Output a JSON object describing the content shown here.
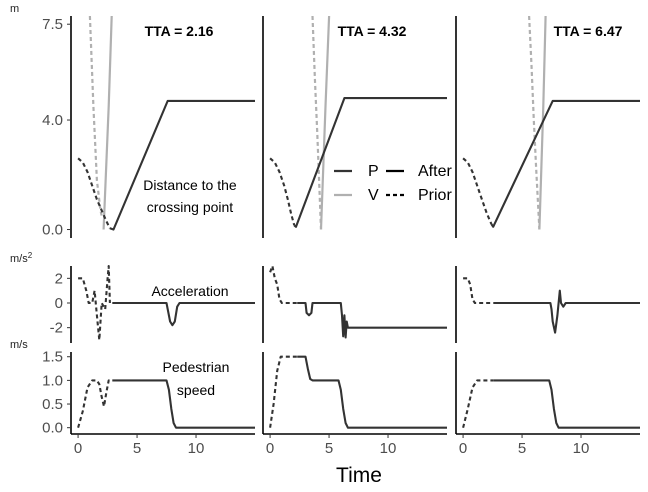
{
  "chart_data": {
    "type": "line",
    "xlabel": "Time",
    "x_ticks": [
      0,
      5,
      10
    ],
    "x_range": [
      -0.6,
      15
    ],
    "legend": {
      "placement": "center",
      "rows": [
        {
          "agent": "P",
          "after": "After",
          "color": "#333333"
        },
        {
          "agent": "V",
          "after": "Prior",
          "color": "#b0b0b0"
        }
      ],
      "style_after": "solid",
      "style_prior": "dashed"
    },
    "panels": {
      "distance": {
        "unit": "m",
        "ylim": [
          -0.2,
          7.8
        ],
        "y_ticks": [
          {
            "value": 0,
            "label": "0.0"
          },
          {
            "value": 4,
            "label": "4.0"
          },
          {
            "value": 7.5,
            "label": "7.5"
          }
        ],
        "annotation": [
          "Distance to the",
          "crossing point"
        ]
      },
      "acceleration": {
        "unit": "m/s",
        "unit_sup": "2",
        "ylim": [
          -3,
          3
        ],
        "y_ticks": [
          {
            "value": 2,
            "label": "2"
          },
          {
            "value": 0,
            "label": "0"
          },
          {
            "value": -2,
            "label": "-2"
          }
        ],
        "annotation": [
          "Acceleration"
        ]
      },
      "speed": {
        "unit": "m/s",
        "ylim": [
          -0.07,
          1.6
        ],
        "y_ticks": [
          {
            "value": 0,
            "label": "0.0"
          },
          {
            "value": 0.5,
            "label": "0.5"
          },
          {
            "value": 1.0,
            "label": "1.0"
          },
          {
            "value": 1.5,
            "label": "1.5"
          }
        ],
        "annotation": [
          "Pedestrian",
          "speed"
        ]
      }
    },
    "columns": [
      {
        "title": "TTA = 2.16",
        "distance": {
          "ped_prior": [
            [
              0,
              2.6
            ],
            [
              0.4,
              2.45
            ],
            [
              0.8,
              2.1
            ],
            [
              1.2,
              1.6
            ],
            [
              1.6,
              1.1
            ],
            [
              2.0,
              0.7
            ],
            [
              2.4,
              0.3
            ],
            [
              2.7,
              0.05
            ]
          ],
          "ped_after": [
            [
              2.7,
              0.05
            ],
            [
              3.0,
              0.0
            ],
            [
              7.6,
              4.7
            ],
            [
              15,
              4.7
            ]
          ],
          "veh_prior": [
            [
              1.0,
              7.8
            ],
            [
              1.3,
              4.5
            ],
            [
              1.6,
              1.8
            ],
            [
              1.9,
              0.7
            ],
            [
              2.0,
              0.5
            ]
          ],
          "veh_after": [
            [
              2.16,
              0.0
            ],
            [
              2.6,
              4.5
            ],
            [
              2.85,
              7.8
            ]
          ]
        },
        "acceleration": {
          "ped_prior": [
            [
              0,
              2
            ],
            [
              0.4,
              2
            ],
            [
              0.7,
              1
            ],
            [
              0.9,
              0
            ],
            [
              1.2,
              0
            ],
            [
              1.4,
              1
            ],
            [
              1.6,
              -1
            ],
            [
              1.8,
              -3
            ],
            [
              2.0,
              0
            ],
            [
              2.3,
              -0.5
            ],
            [
              2.5,
              2
            ],
            [
              2.6,
              3
            ],
            [
              2.7,
              0
            ]
          ],
          "ped_after": [
            [
              2.9,
              0
            ],
            [
              7.5,
              0
            ],
            [
              7.6,
              -0.5
            ],
            [
              7.8,
              -1.5
            ],
            [
              8.0,
              -1.8
            ],
            [
              8.2,
              -1.5
            ],
            [
              8.4,
              -0.3
            ],
            [
              8.6,
              0
            ],
            [
              15,
              0
            ]
          ]
        },
        "speed": {
          "ped_prior": [
            [
              0,
              0
            ],
            [
              0.4,
              0.35
            ],
            [
              0.8,
              0.85
            ],
            [
              1.2,
              1.0
            ],
            [
              1.6,
              1.0
            ],
            [
              1.8,
              0.92
            ],
            [
              2.0,
              0.65
            ],
            [
              2.2,
              0.45
            ],
            [
              2.4,
              0.75
            ],
            [
              2.6,
              1.0
            ],
            [
              2.9,
              1.0
            ]
          ],
          "ped_after": [
            [
              2.9,
              1.0
            ],
            [
              7.5,
              1.0
            ],
            [
              7.7,
              0.8
            ],
            [
              7.9,
              0.4
            ],
            [
              8.1,
              0.1
            ],
            [
              8.3,
              0.0
            ],
            [
              15,
              0.0
            ]
          ]
        }
      },
      {
        "title": "TTA = 4.32",
        "distance": {
          "ped_prior": [
            [
              0,
              2.6
            ],
            [
              0.4,
              2.45
            ],
            [
              0.8,
              2.1
            ],
            [
              1.2,
              1.6
            ],
            [
              1.5,
              1.1
            ],
            [
              1.8,
              0.55
            ],
            [
              2.05,
              0.15
            ]
          ],
          "ped_after": [
            [
              2.05,
              0.15
            ],
            [
              2.2,
              0.1
            ],
            [
              6.3,
              4.8
            ],
            [
              15,
              4.8
            ]
          ],
          "veh_prior": [
            [
              3.6,
              7.8
            ],
            [
              3.8,
              5.5
            ],
            [
              4.0,
              3.5
            ],
            [
              4.32,
              0.0
            ]
          ],
          "veh_after": [
            [
              4.32,
              0.0
            ],
            [
              4.7,
              4.5
            ],
            [
              5.0,
              7.8
            ]
          ]
        },
        "acceleration": {
          "ped_prior": [
            [
              0,
              2.5
            ],
            [
              0.2,
              3
            ],
            [
              0.4,
              2
            ],
            [
              0.6,
              1.5
            ],
            [
              0.8,
              0.3
            ],
            [
              1.0,
              0
            ],
            [
              2.3,
              0
            ]
          ],
          "ped_after": [
            [
              2.3,
              0
            ],
            [
              3.0,
              0
            ],
            [
              3.1,
              -0.8
            ],
            [
              3.3,
              -1
            ],
            [
              3.5,
              -0.8
            ],
            [
              3.6,
              0
            ],
            [
              6.0,
              0
            ],
            [
              6.1,
              -1
            ],
            [
              6.2,
              -2.7
            ],
            [
              6.3,
              -1
            ],
            [
              6.4,
              -2.8
            ],
            [
              6.5,
              -1.5
            ],
            [
              6.6,
              -2
            ],
            [
              15,
              -2
            ]
          ]
        },
        "speed": {
          "ped_prior": [
            [
              0,
              0
            ],
            [
              0.3,
              0.5
            ],
            [
              0.6,
              1.2
            ],
            [
              0.9,
              1.5
            ],
            [
              2.3,
              1.5
            ]
          ],
          "ped_after": [
            [
              2.3,
              1.5
            ],
            [
              3.0,
              1.5
            ],
            [
              3.2,
              1.25
            ],
            [
              3.4,
              1.03
            ],
            [
              3.6,
              1.0
            ],
            [
              5.8,
              1.0
            ],
            [
              6.0,
              0.8
            ],
            [
              6.2,
              0.4
            ],
            [
              6.4,
              0.1
            ],
            [
              6.6,
              0.0
            ],
            [
              15,
              0.0
            ]
          ]
        }
      },
      {
        "title": "TTA = 6.47",
        "distance": {
          "ped_prior": [
            [
              0,
              2.6
            ],
            [
              0.4,
              2.45
            ],
            [
              0.8,
              2.1
            ],
            [
              1.2,
              1.6
            ],
            [
              1.6,
              1.1
            ],
            [
              2.0,
              0.6
            ],
            [
              2.4,
              0.2
            ]
          ],
          "ped_after": [
            [
              2.4,
              0.2
            ],
            [
              2.55,
              0.1
            ],
            [
              7.6,
              4.7
            ],
            [
              15,
              4.7
            ]
          ],
          "veh_prior": [
            [
              5.6,
              7.8
            ],
            [
              5.8,
              6.0
            ],
            [
              6.0,
              4.0
            ],
            [
              6.2,
              2.2
            ],
            [
              6.47,
              0.0
            ]
          ],
          "veh_after": [
            [
              6.47,
              0.0
            ],
            [
              6.8,
              4.5
            ],
            [
              7.0,
              7.8
            ]
          ]
        },
        "acceleration": {
          "ped_prior": [
            [
              0,
              2
            ],
            [
              0.4,
              2
            ],
            [
              0.6,
              1.5
            ],
            [
              0.8,
              0.3
            ],
            [
              1.0,
              0
            ],
            [
              2.6,
              0
            ]
          ],
          "ped_after": [
            [
              2.6,
              0
            ],
            [
              7.4,
              0
            ],
            [
              7.5,
              -0.5
            ],
            [
              7.6,
              -1.5
            ],
            [
              7.8,
              -2.4
            ],
            [
              8.0,
              -1.0
            ],
            [
              8.2,
              1.0
            ],
            [
              8.3,
              0.0
            ],
            [
              8.5,
              -0.3
            ],
            [
              8.7,
              0
            ],
            [
              15,
              0
            ]
          ]
        },
        "speed": {
          "ped_prior": [
            [
              0,
              0
            ],
            [
              0.4,
              0.4
            ],
            [
              0.8,
              0.85
            ],
            [
              1.2,
              1.0
            ],
            [
              2.6,
              1.0
            ]
          ],
          "ped_after": [
            [
              2.6,
              1.0
            ],
            [
              7.3,
              1.0
            ],
            [
              7.5,
              0.8
            ],
            [
              7.7,
              0.4
            ],
            [
              7.9,
              0.1
            ],
            [
              8.1,
              0.0
            ],
            [
              15,
              0.0
            ]
          ]
        }
      }
    ]
  }
}
